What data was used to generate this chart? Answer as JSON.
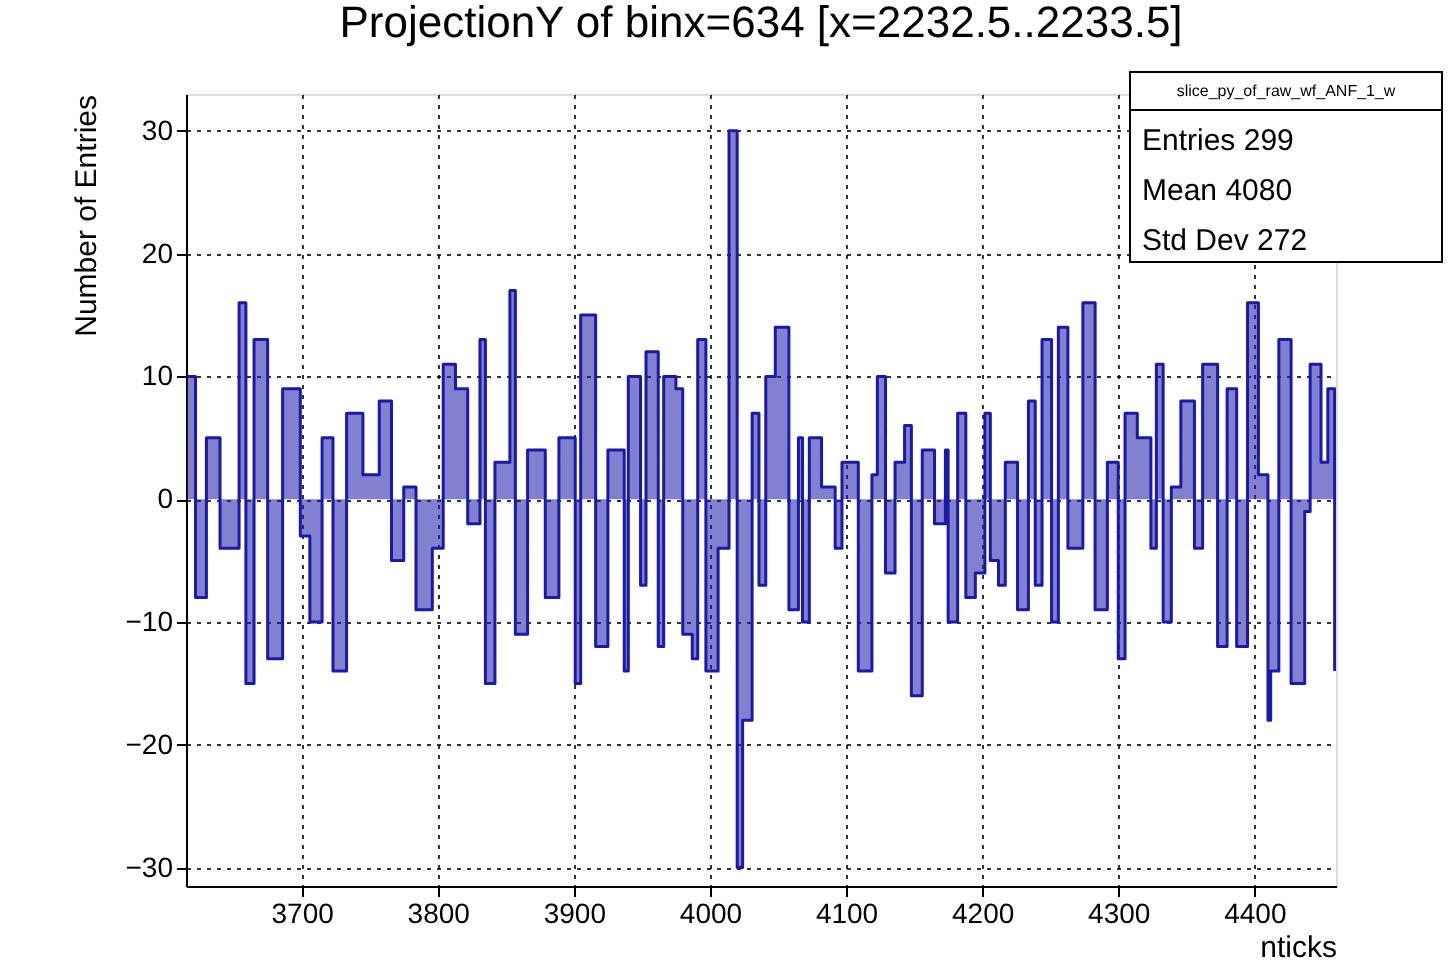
{
  "chart_data": {
    "type": "step",
    "title": "ProjectionY of binx=634 [x=2232.5..2233.5]",
    "xlabel": "nticks",
    "ylabel": "Number of Entries",
    "annotations": [
      "slice_py_of_raw_wf_ANF_1_w",
      "Entries 299",
      "Mean 4080",
      "Std Dev 272"
    ],
    "xlim": [
      3615,
      4460
    ],
    "xticks": [
      3700,
      3800,
      3900,
      4000,
      4100,
      4200,
      4300,
      4400
    ],
    "ylim": [
      -31.5,
      33
    ],
    "yticks": [
      -30,
      -20,
      -10,
      0,
      10,
      20,
      30
    ],
    "grid": true,
    "series": [
      {
        "color": "#1a1aa8",
        "x": [
          3616,
          3622,
          3630,
          3640,
          3654,
          3659,
          3665,
          3675,
          3686,
          3699,
          3706,
          3715,
          3723,
          3733,
          3745,
          3757,
          3766,
          3775,
          3784,
          3796,
          3804,
          3813,
          3822,
          3831,
          3835,
          3842,
          3853,
          3857,
          3866,
          3879,
          3889,
          3901,
          3905,
          3916,
          3925,
          3937,
          3940,
          3949,
          3953,
          3962,
          3966,
          3975,
          3980,
          3987,
          3991,
          3997,
          4006,
          4014,
          4020,
          4024,
          4031,
          4036,
          4041,
          4048,
          4058,
          4065,
          4068,
          4073,
          4082,
          4092,
          4097,
          4109,
          4119,
          4123,
          4129,
          4136,
          4143,
          4148,
          4156,
          4165,
          4173,
          4175,
          4182,
          4188,
          4195,
          4202,
          4206,
          4212,
          4217,
          4226,
          4234,
          4239,
          4244,
          4251,
          4256,
          4263,
          4274,
          4283,
          4292,
          4300,
          4305,
          4314,
          4324,
          4328,
          4333,
          4339,
          4346,
          4356,
          4362,
          4373,
          4380,
          4387,
          4395,
          4403,
          4410,
          4412,
          4418,
          4427,
          4437,
          4441,
          4449,
          4454,
          4459
        ],
        "values": [
          10,
          -8,
          5,
          -4,
          16,
          -15,
          13,
          -13,
          9,
          -3,
          -10,
          5,
          -14,
          7,
          2,
          8,
          -5,
          1,
          -9,
          -4,
          11,
          9,
          -2,
          13,
          -15,
          3,
          17,
          -11,
          4,
          -8,
          5,
          -15,
          15,
          -12,
          4,
          -14,
          10,
          -7,
          12,
          -12,
          10,
          9,
          -11,
          -13,
          13,
          -14,
          -4,
          30,
          -30,
          -18,
          7,
          -7,
          10,
          14,
          -9,
          5,
          -10,
          5,
          1,
          -4,
          3,
          -14,
          2,
          10,
          -6,
          3,
          6,
          -16,
          4,
          -2,
          4,
          -10,
          7,
          -8,
          -6,
          7,
          -5,
          -7,
          3,
          -9,
          8,
          -7,
          13,
          -10,
          14,
          -4,
          16,
          -9,
          3,
          -13,
          7,
          5,
          -4,
          11,
          -10,
          1,
          8,
          -4,
          11,
          -12,
          9,
          -12,
          16,
          2,
          -18,
          -14,
          13,
          -15,
          -1,
          11,
          3,
          9,
          -14
        ]
      }
    ]
  }
}
